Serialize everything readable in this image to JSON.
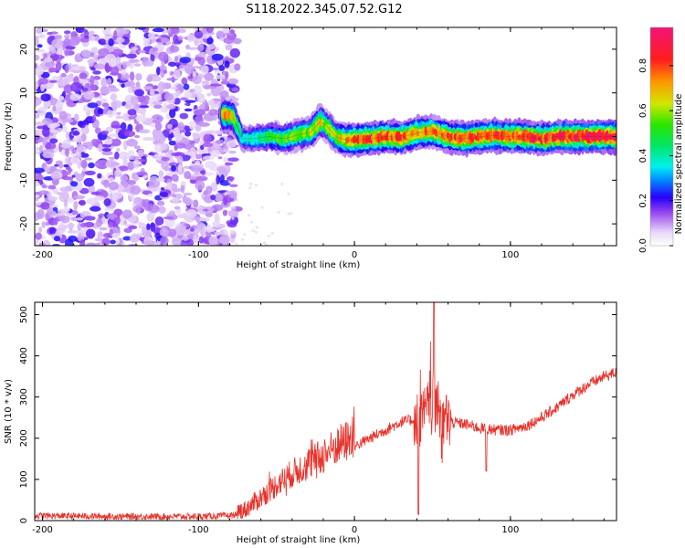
{
  "title": "S118.2022.345.07.52.G12",
  "chart_data": [
    {
      "type": "heatmap",
      "name": "spectrogram",
      "xlabel": "Height of straight line (km)",
      "ylabel": "Frequency (Hz)",
      "xlim": [
        -205,
        168
      ],
      "ylim": [
        -25,
        25
      ],
      "xticks": [
        -200,
        -100,
        0,
        100
      ],
      "yticks": [
        -20,
        -10,
        0,
        10,
        20
      ],
      "colorbar": {
        "label": "Normalized spectral amplitude",
        "range": [
          0,
          0.97
        ],
        "ticks": [
          0.0,
          0.2,
          0.4,
          0.6,
          0.8
        ]
      },
      "ridge": {
        "x": [
          -82,
          -78,
          -72,
          -65,
          -55,
          -45,
          -35,
          -28,
          -22,
          -18,
          -12,
          -5,
          0,
          10,
          20,
          30,
          40,
          50,
          60,
          70,
          80,
          90,
          100,
          110,
          120,
          130,
          140,
          150,
          160,
          168
        ],
        "freq": [
          5,
          4.5,
          -0.5,
          -0.5,
          0,
          -0.5,
          0.5,
          1,
          3.5,
          2.5,
          0,
          -0.8,
          -0.8,
          -0.5,
          0,
          -0.2,
          0.8,
          1.2,
          0,
          -0.5,
          0,
          0.2,
          0,
          0,
          -0.5,
          0,
          0,
          0,
          0,
          0
        ],
        "amp": [
          0.75,
          0.7,
          0.35,
          0.4,
          0.5,
          0.55,
          0.6,
          0.65,
          0.7,
          0.6,
          0.65,
          0.75,
          0.8,
          0.85,
          0.85,
          0.8,
          0.8,
          0.75,
          0.8,
          0.85,
          0.85,
          0.85,
          0.85,
          0.9,
          0.85,
          0.9,
          0.9,
          0.95,
          0.95,
          0.95
        ]
      },
      "noise_region_x": [
        -205,
        -75
      ]
    },
    {
      "type": "line",
      "name": "snr",
      "xlabel": "Height of straight line (km)",
      "ylabel": "SNR (10 * v/v)",
      "xlim": [
        -205,
        168
      ],
      "ylim": [
        0,
        530
      ],
      "xticks": [
        -200,
        -100,
        0,
        100
      ],
      "yticks": [
        0,
        100,
        200,
        300,
        400,
        500
      ],
      "color": "#e8312a",
      "x": [
        -205,
        -150,
        -100,
        -80,
        -70,
        -60,
        -50,
        -40,
        -30,
        -20,
        -10,
        0,
        10,
        20,
        30,
        38,
        42,
        46,
        50,
        52,
        55,
        60,
        70,
        80,
        90,
        100,
        110,
        120,
        130,
        140,
        150,
        160,
        168
      ],
      "y": [
        12,
        10,
        10,
        12,
        18,
        45,
        75,
        100,
        120,
        140,
        165,
        180,
        200,
        220,
        240,
        245,
        250,
        265,
        300,
        290,
        260,
        240,
        235,
        225,
        220,
        220,
        230,
        250,
        275,
        305,
        330,
        350,
        360
      ]
    }
  ]
}
